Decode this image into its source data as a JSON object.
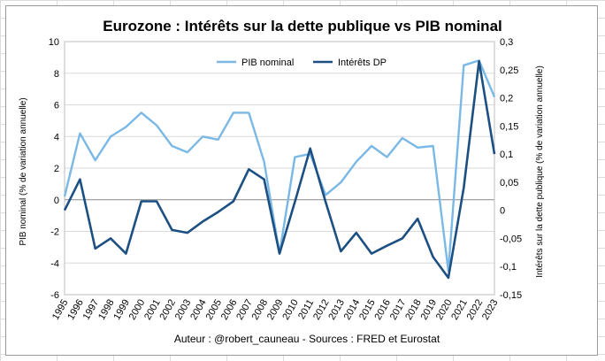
{
  "chart_data": {
    "type": "line",
    "title": "Eurozone : Intérêts sur la dette publique vs PIB nominal",
    "ylabel": "PIB nominal (% de variation annuelle)",
    "y2label": "Intérêts sur la dette publique (% de variation annuelle)",
    "footer": "Auteur : @robert_cauneau - Sources : FRED et Eurostat",
    "ylim": [
      -6,
      10
    ],
    "y2lim": [
      -0.15,
      0.3
    ],
    "yticks": [
      "10",
      "8",
      "6",
      "4",
      "2",
      "0",
      "-2",
      "-4",
      "-6"
    ],
    "y2ticks": [
      "0,3",
      "0,25",
      "0,2",
      "0,15",
      "0,1",
      "0,05",
      "0",
      "-0,05",
      "-0,1",
      "-0,15"
    ],
    "grid": true,
    "legend_position": "top",
    "x": [
      "1995",
      "1996",
      "1997",
      "1998",
      "1999",
      "2000",
      "2001",
      "2002",
      "2003",
      "2004",
      "2005",
      "2006",
      "2007",
      "2008",
      "2009",
      "2010",
      "2011",
      "2012",
      "2013",
      "2014",
      "2015",
      "2016",
      "2017",
      "2018",
      "2019",
      "2020",
      "2021",
      "2022",
      "2023"
    ],
    "series": [
      {
        "name": "PIB nominal",
        "axis": "left",
        "color": "#7ab8e6",
        "values": [
          0.2,
          4.2,
          2.5,
          4.0,
          4.6,
          5.5,
          4.7,
          3.4,
          3.0,
          4.0,
          3.8,
          5.5,
          5.5,
          2.4,
          -3.4,
          2.7,
          2.9,
          0.3,
          1.1,
          2.4,
          3.4,
          2.7,
          3.9,
          3.3,
          3.4,
          -4.5,
          8.5,
          8.8,
          6.5
        ]
      },
      {
        "name": "Intérêts DP",
        "axis": "right",
        "color": "#1c4f82",
        "values": [
          0.0,
          0.055,
          -0.068,
          -0.05,
          -0.077,
          0.016,
          0.016,
          -0.035,
          -0.04,
          -0.02,
          -0.003,
          0.016,
          0.073,
          0.055,
          -0.077,
          0.015,
          0.11,
          0.015,
          -0.073,
          -0.04,
          -0.077,
          -0.063,
          -0.05,
          -0.015,
          -0.083,
          -0.12,
          0.04,
          0.265,
          0.1
        ]
      }
    ]
  }
}
